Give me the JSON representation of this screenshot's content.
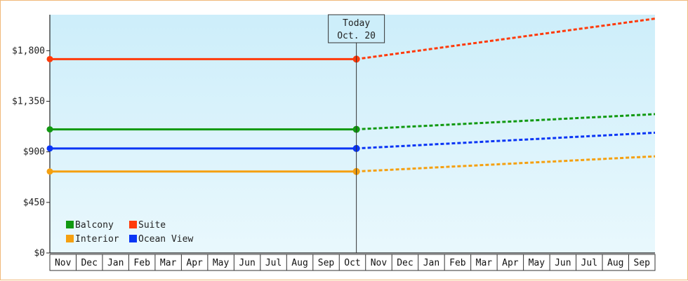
{
  "chart_data": {
    "type": "line",
    "title": "",
    "xlabel": "",
    "ylabel": "",
    "ylim": [
      0,
      2120
    ],
    "yticks": [
      {
        "value": 0,
        "label": "$0"
      },
      {
        "value": 450,
        "label": "$450"
      },
      {
        "value": 900,
        "label": "$900"
      },
      {
        "value": 1350,
        "label": "$1,350"
      },
      {
        "value": 1800,
        "label": "$1,800"
      }
    ],
    "months": [
      "Nov",
      "Dec",
      "Jan",
      "Feb",
      "Mar",
      "Apr",
      "May",
      "Jun",
      "Jul",
      "Aug",
      "Sep",
      "Oct",
      "Nov",
      "Dec",
      "Jan",
      "Feb",
      "Mar",
      "Apr",
      "May",
      "Jun",
      "Jul",
      "Aug",
      "Sep"
    ],
    "today": {
      "line1": "Today",
      "line2": "Oct. 20",
      "month_index": 11.65
    },
    "series": [
      {
        "name": "Suite",
        "color": "#ff3a0a",
        "history": 1725,
        "forecast_end": 2085
      },
      {
        "name": "Balcony",
        "color": "#119911",
        "history": 1100,
        "forecast_end": 1235
      },
      {
        "name": "Ocean View",
        "color": "#0a35f5",
        "history": 930,
        "forecast_end": 1070
      },
      {
        "name": "Interior",
        "color": "#f5a010",
        "history": 725,
        "forecast_end": 860
      }
    ],
    "legend": {
      "position": "bottom-left",
      "items": [
        {
          "name": "Balcony",
          "color": "#119911"
        },
        {
          "name": "Suite",
          "color": "#ff3a0a"
        },
        {
          "name": "Interior",
          "color": "#f5a010"
        },
        {
          "name": "Ocean View",
          "color": "#0a35f5"
        }
      ]
    },
    "background": {
      "top": "#cdeefa",
      "bottom": "#e9f8fd"
    }
  }
}
